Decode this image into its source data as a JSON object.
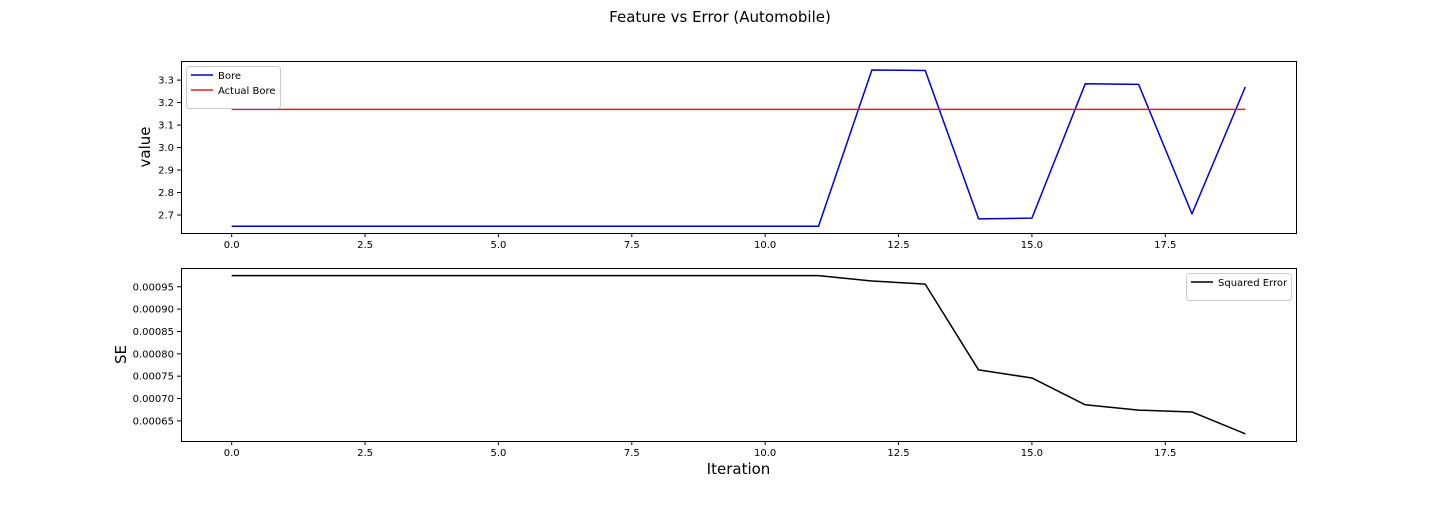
{
  "figure": {
    "title": "Feature vs Error (Automobile)"
  },
  "chart_data": [
    {
      "type": "line",
      "ylabel": "value",
      "xlabel": "",
      "xlim": [
        -0.95,
        19.95
      ],
      "ylim": [
        2.62,
        3.385
      ],
      "xticks": [
        0.0,
        2.5,
        5.0,
        7.5,
        10.0,
        12.5,
        15.0,
        17.5
      ],
      "xtick_labels": [
        "0.0",
        "2.5",
        "5.0",
        "7.5",
        "10.0",
        "12.5",
        "15.0",
        "17.5"
      ],
      "yticks": [
        2.7,
        2.8,
        2.9,
        3.0,
        3.1,
        3.2,
        3.3
      ],
      "ytick_labels": [
        "2.7",
        "2.8",
        "2.9",
        "3.0",
        "3.1",
        "3.2",
        "3.3"
      ],
      "grid": false,
      "legend_position": "upper-left",
      "series": [
        {
          "name": "Bore",
          "color": "#0000cc",
          "x": [
            0,
            1,
            2,
            3,
            4,
            5,
            6,
            7,
            8,
            9,
            10,
            11,
            12,
            13,
            14,
            15,
            16,
            17,
            18,
            19
          ],
          "values": [
            2.65,
            2.65,
            2.65,
            2.65,
            2.65,
            2.65,
            2.65,
            2.65,
            2.65,
            2.65,
            2.65,
            2.65,
            3.345,
            3.343,
            2.683,
            2.686,
            3.284,
            3.281,
            2.705,
            3.27
          ]
        },
        {
          "name": "Actual Bore",
          "color": "#dd2222",
          "x": [
            0,
            19
          ],
          "values": [
            3.17,
            3.17
          ]
        }
      ]
    },
    {
      "type": "line",
      "ylabel": "SE",
      "xlabel": "Iteration",
      "xlim": [
        -0.95,
        19.95
      ],
      "ylim": [
        0.000605,
        0.000992
      ],
      "xticks": [
        0.0,
        2.5,
        5.0,
        7.5,
        10.0,
        12.5,
        15.0,
        17.5
      ],
      "xtick_labels": [
        "0.0",
        "2.5",
        "5.0",
        "7.5",
        "10.0",
        "12.5",
        "15.0",
        "17.5"
      ],
      "yticks": [
        0.00065,
        0.0007,
        0.00075,
        0.0008,
        0.00085,
        0.0009,
        0.00095
      ],
      "ytick_labels": [
        "0.00065",
        "0.00070",
        "0.00075",
        "0.00080",
        "0.00085",
        "0.00090",
        "0.00095"
      ],
      "grid": false,
      "legend_position": "upper-right",
      "series": [
        {
          "name": "Squared Error",
          "color": "#000000",
          "x": [
            0,
            1,
            2,
            3,
            4,
            5,
            6,
            7,
            8,
            9,
            10,
            11,
            12,
            13,
            14,
            15,
            16,
            17,
            18,
            19
          ],
          "values": [
            0.000975,
            0.000975,
            0.000975,
            0.000975,
            0.000975,
            0.000975,
            0.000975,
            0.000975,
            0.000975,
            0.000975,
            0.000975,
            0.000975,
            0.000963,
            0.000956,
            0.000764,
            0.000746,
            0.000686,
            0.000674,
            0.00067,
            0.000621
          ]
        }
      ]
    }
  ]
}
